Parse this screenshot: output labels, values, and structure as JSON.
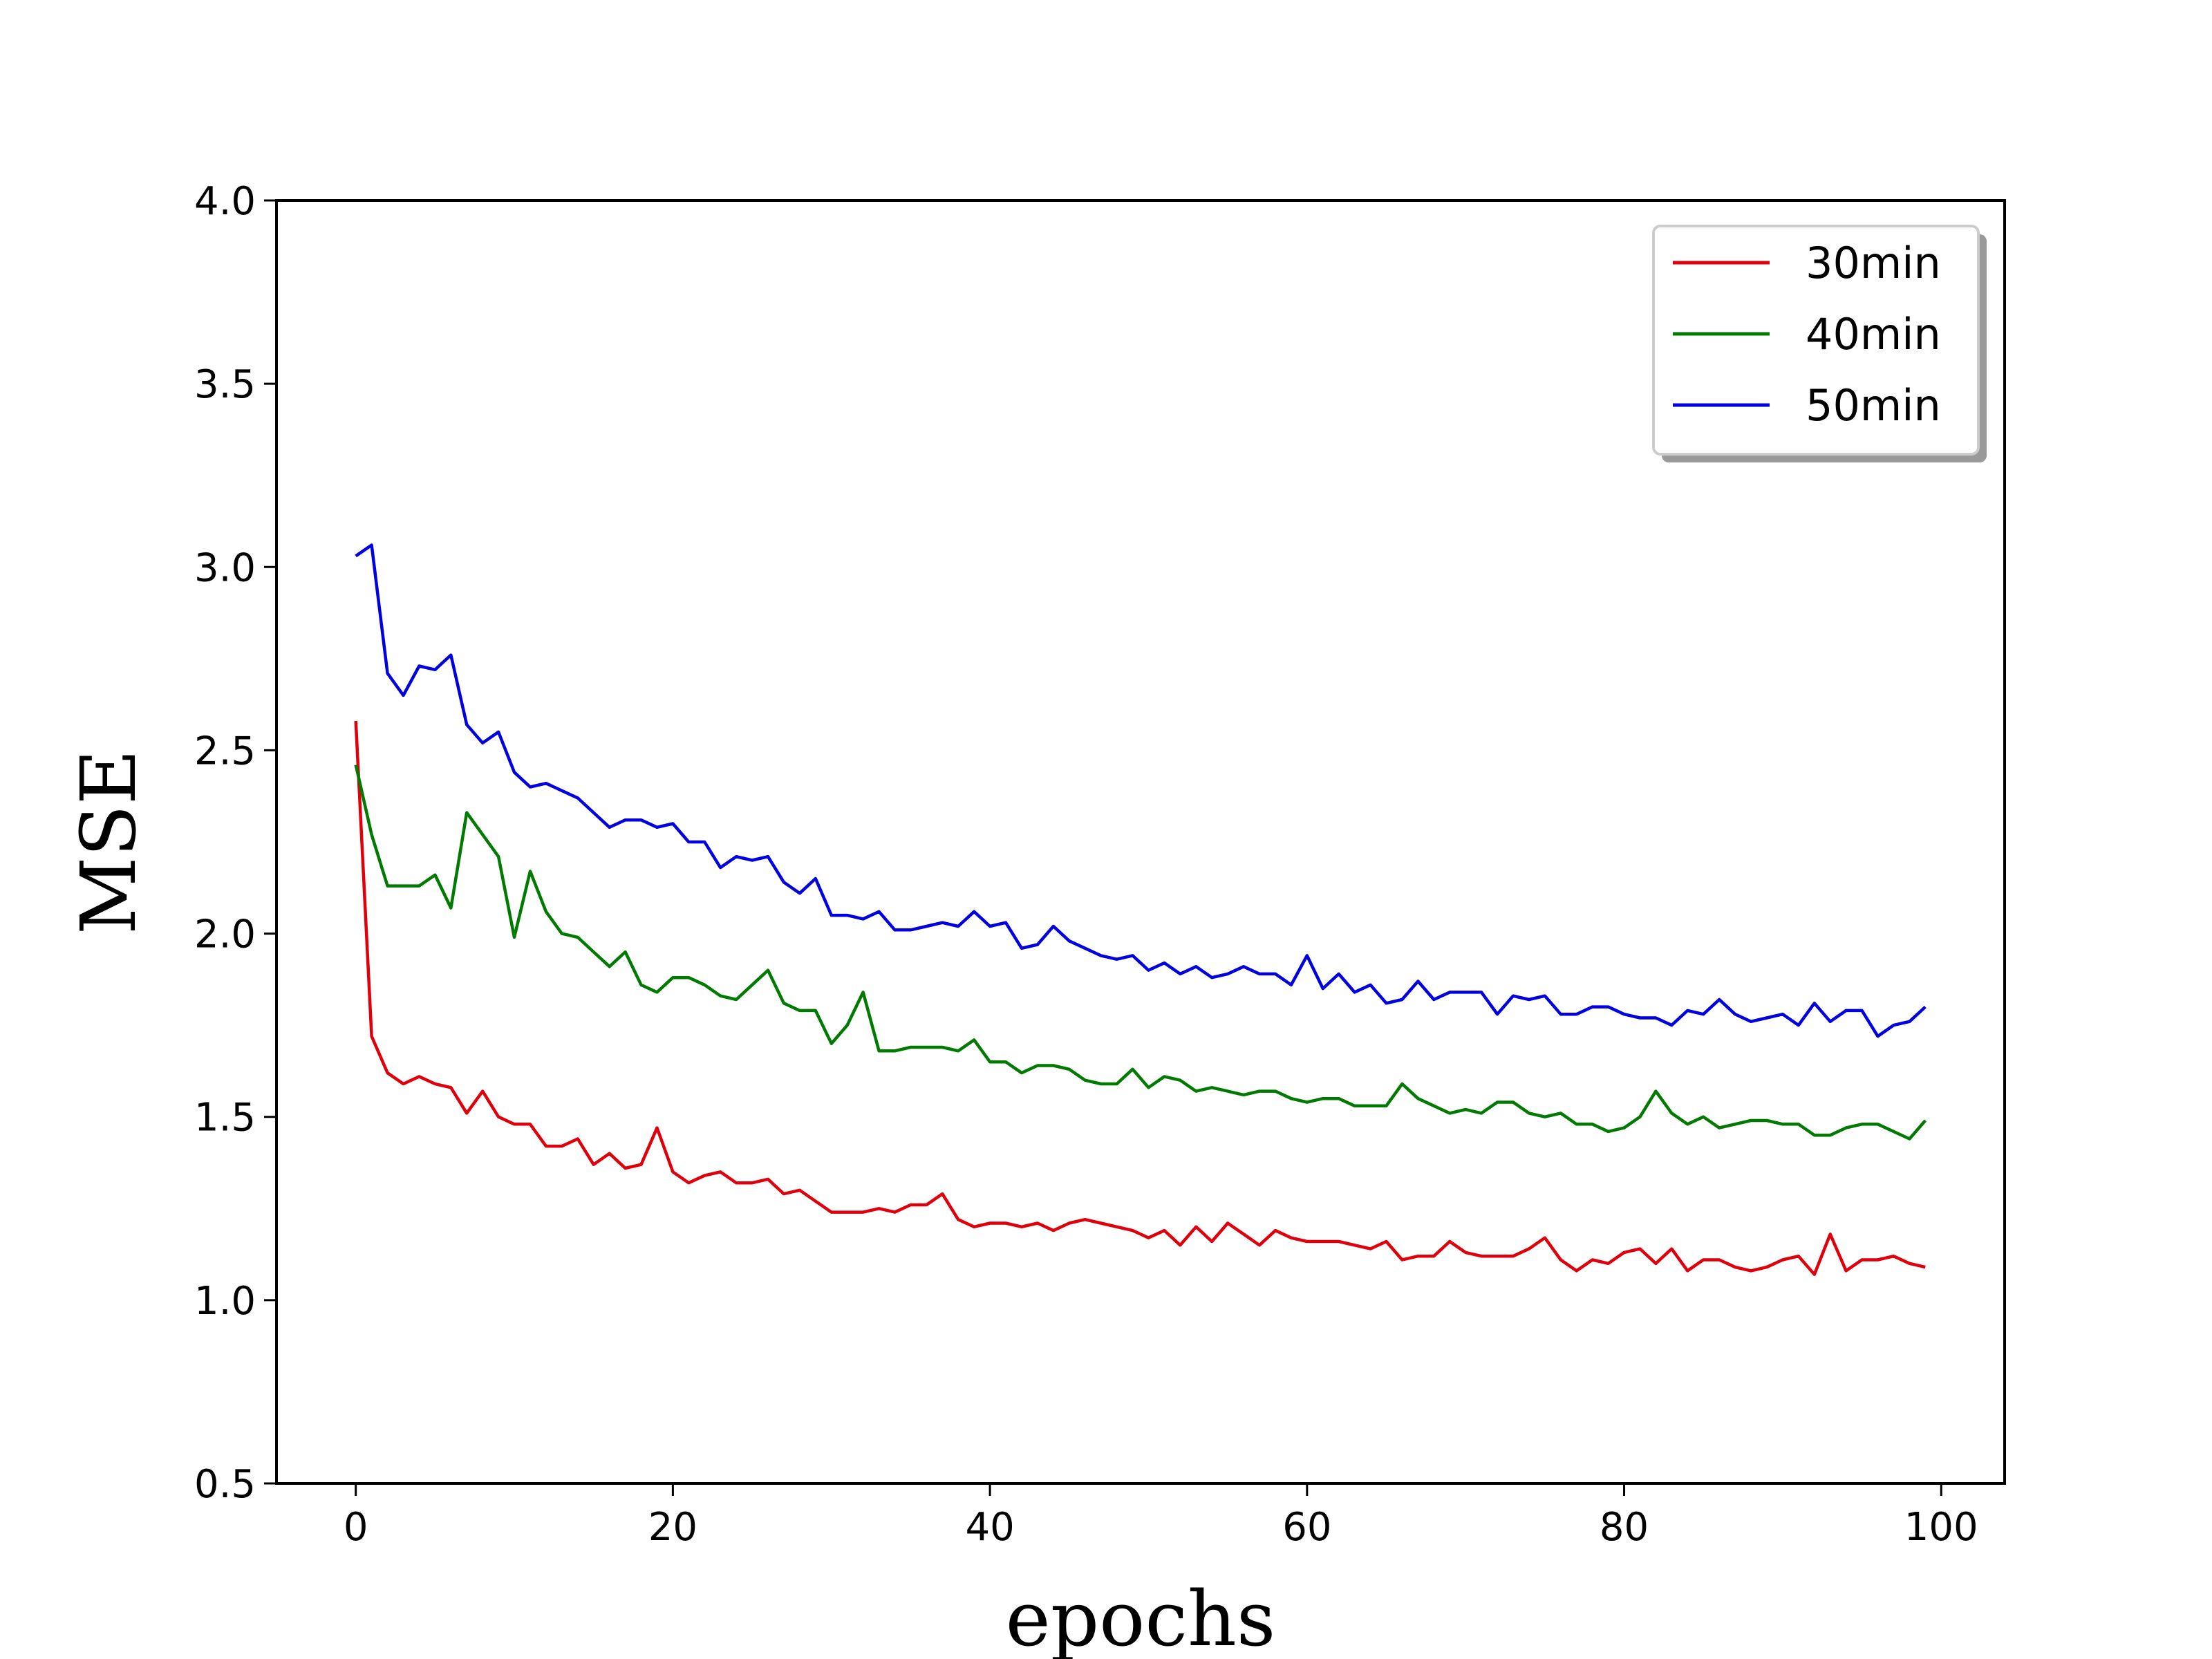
{
  "chart_data": {
    "type": "line",
    "title": "",
    "xlabel": "epochs",
    "ylabel": "MSE",
    "xlim": [
      -5,
      104
    ],
    "ylim": [
      0.5,
      4.0
    ],
    "xticks": [
      0,
      20,
      40,
      60,
      80,
      100
    ],
    "yticks": [
      0.5,
      1.0,
      1.5,
      2.0,
      2.5,
      3.0,
      3.5,
      4.0
    ],
    "xtick_labels": [
      "0",
      "20",
      "40",
      "60",
      "80",
      "100"
    ],
    "ytick_labels": [
      "0.5",
      "1.0",
      "1.5",
      "2.0",
      "2.5",
      "3.0",
      "3.5",
      "4.0"
    ],
    "grid": false,
    "legend_position": "top-right",
    "series": [
      {
        "name": "30min",
        "color": "#e0000b",
        "values": [
          2.58,
          1.72,
          1.62,
          1.59,
          1.61,
          1.59,
          1.58,
          1.51,
          1.57,
          1.5,
          1.48,
          1.48,
          1.42,
          1.42,
          1.44,
          1.37,
          1.4,
          1.36,
          1.37,
          1.47,
          1.35,
          1.32,
          1.34,
          1.35,
          1.32,
          1.32,
          1.33,
          1.29,
          1.3,
          1.27,
          1.24,
          1.24,
          1.24,
          1.25,
          1.24,
          1.26,
          1.26,
          1.29,
          1.22,
          1.2,
          1.21,
          1.21,
          1.2,
          1.21,
          1.19,
          1.21,
          1.22,
          1.21,
          1.2,
          1.19,
          1.17,
          1.19,
          1.15,
          1.2,
          1.16,
          1.21,
          1.18,
          1.15,
          1.19,
          1.17,
          1.16,
          1.16,
          1.16,
          1.15,
          1.14,
          1.16,
          1.11,
          1.12,
          1.12,
          1.16,
          1.13,
          1.12,
          1.12,
          1.12,
          1.14,
          1.17,
          1.11,
          1.08,
          1.11,
          1.1,
          1.13,
          1.14,
          1.1,
          1.14,
          1.08,
          1.11,
          1.11,
          1.09,
          1.08,
          1.09,
          1.11,
          1.12,
          1.07,
          1.18,
          1.08,
          1.11,
          1.11,
          1.12,
          1.1,
          1.09
        ]
      },
      {
        "name": "40min",
        "color": "#007a00",
        "values": [
          2.46,
          2.27,
          2.13,
          2.13,
          2.13,
          2.16,
          2.07,
          2.33,
          2.27,
          2.21,
          1.99,
          2.17,
          2.06,
          2.0,
          1.99,
          1.95,
          1.91,
          1.95,
          1.86,
          1.84,
          1.88,
          1.88,
          1.86,
          1.83,
          1.82,
          1.86,
          1.9,
          1.81,
          1.79,
          1.79,
          1.7,
          1.75,
          1.84,
          1.68,
          1.68,
          1.69,
          1.69,
          1.69,
          1.68,
          1.71,
          1.65,
          1.65,
          1.62,
          1.64,
          1.64,
          1.63,
          1.6,
          1.59,
          1.59,
          1.63,
          1.58,
          1.61,
          1.6,
          1.57,
          1.58,
          1.57,
          1.56,
          1.57,
          1.57,
          1.55,
          1.54,
          1.55,
          1.55,
          1.53,
          1.53,
          1.53,
          1.59,
          1.55,
          1.53,
          1.51,
          1.52,
          1.51,
          1.54,
          1.54,
          1.51,
          1.5,
          1.51,
          1.48,
          1.48,
          1.46,
          1.47,
          1.5,
          1.57,
          1.51,
          1.48,
          1.5,
          1.47,
          1.48,
          1.49,
          1.49,
          1.48,
          1.48,
          1.45,
          1.45,
          1.47,
          1.48,
          1.48,
          1.46,
          1.44,
          1.49
        ]
      },
      {
        "name": "50min",
        "color": "#0000e0",
        "values": [
          3.03,
          3.06,
          2.71,
          2.65,
          2.73,
          2.72,
          2.76,
          2.57,
          2.52,
          2.55,
          2.44,
          2.4,
          2.41,
          2.39,
          2.37,
          2.33,
          2.29,
          2.31,
          2.31,
          2.29,
          2.3,
          2.25,
          2.25,
          2.18,
          2.21,
          2.2,
          2.21,
          2.14,
          2.11,
          2.15,
          2.05,
          2.05,
          2.04,
          2.06,
          2.01,
          2.01,
          2.02,
          2.03,
          2.02,
          2.06,
          2.02,
          2.03,
          1.96,
          1.97,
          2.02,
          1.98,
          1.96,
          1.94,
          1.93,
          1.94,
          1.9,
          1.92,
          1.89,
          1.91,
          1.88,
          1.89,
          1.91,
          1.89,
          1.89,
          1.86,
          1.94,
          1.85,
          1.89,
          1.84,
          1.86,
          1.81,
          1.82,
          1.87,
          1.82,
          1.84,
          1.84,
          1.84,
          1.78,
          1.83,
          1.82,
          1.83,
          1.78,
          1.78,
          1.8,
          1.8,
          1.78,
          1.77,
          1.77,
          1.75,
          1.79,
          1.78,
          1.82,
          1.78,
          1.76,
          1.77,
          1.78,
          1.75,
          1.81,
          1.76,
          1.79,
          1.79,
          1.72,
          1.75,
          1.76,
          1.8
        ]
      }
    ]
  }
}
